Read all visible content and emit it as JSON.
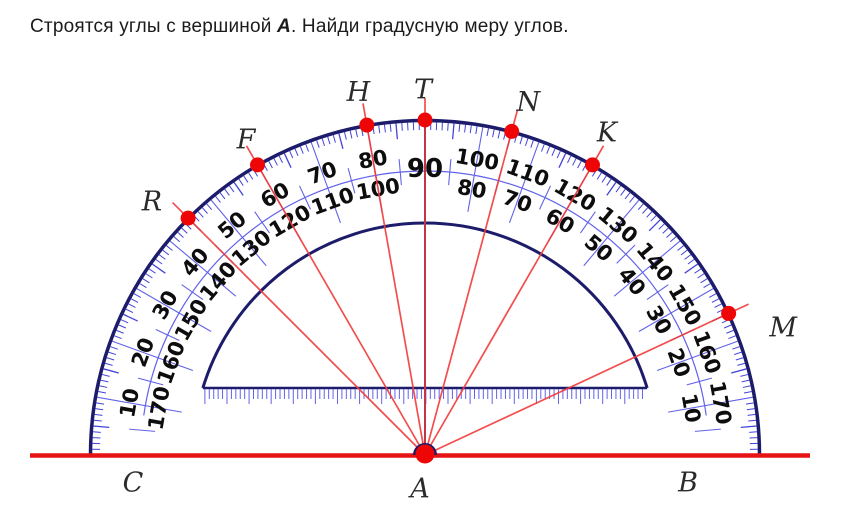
{
  "title": {
    "prefix": "Строятся углы с вершиной ",
    "vertex": "A",
    "suffix": ". Найди градусную меру углов."
  },
  "protractor": {
    "ring_labels": [
      10,
      20,
      30,
      40,
      50,
      60,
      70,
      80,
      100,
      110,
      120,
      130,
      140,
      150,
      160,
      170
    ],
    "apex_label": "90",
    "colors": {
      "navy": "#1c1c6b",
      "tick_blue": "#4343d9",
      "line_blue": "#6262ea",
      "baseline_red": "#e61414",
      "ray_red": "#f23b3b",
      "dot_red": "#ee0606",
      "number": "#0d0d0d",
      "label": "#2b2b2b"
    }
  },
  "points": [
    {
      "label": "R",
      "angle": 135
    },
    {
      "label": "F",
      "angle": 120
    },
    {
      "label": "H",
      "angle": 100
    },
    {
      "label": "T",
      "angle": 90
    },
    {
      "label": "N",
      "angle": 75
    },
    {
      "label": "K",
      "angle": 60
    },
    {
      "label": "M",
      "angle": 25
    }
  ],
  "baseline_labels": {
    "left": "C",
    "vertex": "A",
    "right": "B"
  }
}
